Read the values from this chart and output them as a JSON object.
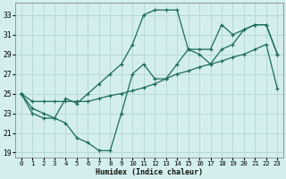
{
  "xlabel": "Humidex (Indice chaleur)",
  "background_color": "#d4eeee",
  "grid_color": "#b8d8d8",
  "line_color": "#1a6b5a",
  "xlim": [
    -0.5,
    23.5
  ],
  "ylim": [
    18.5,
    34.2
  ],
  "xticks": [
    0,
    1,
    2,
    3,
    4,
    5,
    6,
    7,
    8,
    9,
    10,
    11,
    12,
    13,
    14,
    15,
    16,
    17,
    18,
    19,
    20,
    21,
    22,
    23
  ],
  "yticks": [
    19,
    21,
    23,
    25,
    27,
    29,
    31,
    33
  ],
  "series": [
    [
      25,
      23.5,
      23,
      22.5,
      22,
      20.5,
      20,
      19.2,
      19.2,
      23,
      27,
      28,
      26.5,
      26.5,
      28,
      29.5,
      29,
      28,
      29.5,
      30,
      31.5,
      32,
      32,
      29
    ],
    [
      25,
      23,
      22.5,
      22.5,
      24.5,
      24,
      25,
      26,
      27,
      28,
      30,
      33,
      33.5,
      33.5,
      33.5,
      29.5,
      29.5,
      29.5,
      32,
      31,
      31.5,
      32,
      32,
      29
    ],
    [
      25,
      24.2,
      24.2,
      24.2,
      24.2,
      24.2,
      24.2,
      24.5,
      24.8,
      25,
      25.3,
      25.6,
      26,
      26.5,
      27,
      27.3,
      27.7,
      28,
      28.3,
      28.7,
      29,
      29.5,
      30,
      25.5
    ]
  ]
}
